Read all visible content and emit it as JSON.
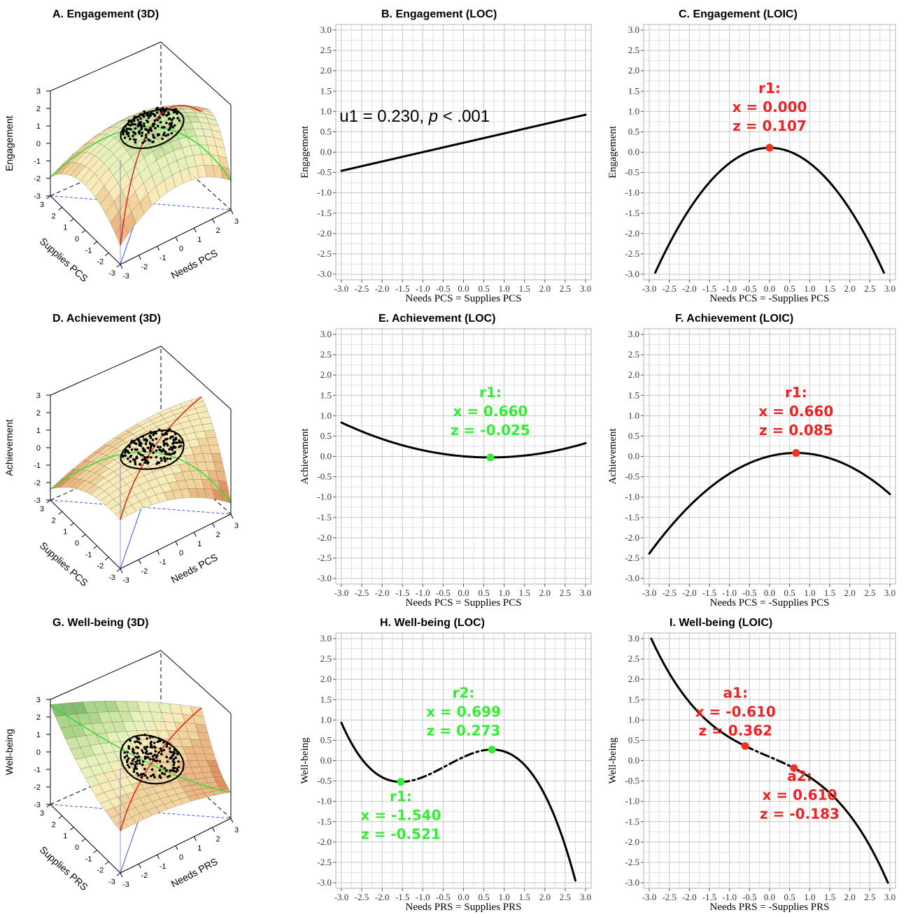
{
  "panels": {
    "A": {
      "title": "A. Engagement (3D)",
      "zlabel": "Engagement",
      "xlabel": "Needs PCS",
      "ylabel": "Supplies PCS"
    },
    "D": {
      "title": "D. Achievement (3D)",
      "zlabel": "Achievement",
      "xlabel": "Needs PCS",
      "ylabel": "Supplies PCS"
    },
    "G": {
      "title": "G. Well-being (3D)",
      "zlabel": "Well-being",
      "xlabel": "Needs PRS",
      "ylabel": "Supplies PRS"
    }
  },
  "colors": {
    "line": "#000000",
    "grid": "#c8c8c8",
    "green_marker": "#33ee33",
    "red_marker": "#ee3322",
    "green_text": "#33ee33",
    "red_text": "#ee2222"
  },
  "chart_data": [
    {
      "id": "B",
      "type": "line",
      "title": "B. Engagement (LOC)",
      "xlabel": "Needs PCS = Supplies PCS",
      "ylabel": "Engagement",
      "xlim": [
        -3.0,
        3.0
      ],
      "ylim": [
        -3.0,
        3.0
      ],
      "xticks": [
        "-3.0",
        "-2.5",
        "-2.0",
        "-1.5",
        "-1.0",
        "-0.5",
        "0.0",
        "0.5",
        "1.0",
        "1.5",
        "2.0",
        "2.5",
        "3.0"
      ],
      "yticks": [
        "-3.0",
        "-2.5",
        "-2.0",
        "-1.5",
        "-1.0",
        "-0.5",
        "0.0",
        "0.5",
        "1.0",
        "1.5",
        "2.0",
        "2.5",
        "3.0"
      ],
      "curve": {
        "kind": "linear",
        "coef": [
          0.23,
          0.23
        ],
        "x_range": [
          -3.0,
          3.0
        ]
      },
      "points": [],
      "annotations": [
        {
          "lines": [
            "u1 = 0.230, p < .001"
          ],
          "x": -1.2,
          "y": 0.75,
          "color": "#000000"
        }
      ]
    },
    {
      "id": "C",
      "type": "line",
      "title": "C. Engagement (LOIC)",
      "xlabel": "Needs PCS = -Supplies PCS",
      "ylabel": "Engagement",
      "xlim": [
        -3.0,
        3.0
      ],
      "ylim": [
        -3.0,
        3.0
      ],
      "xticks": [
        "-3.0",
        "-2.5",
        "-2.0",
        "-1.5",
        "-1.0",
        "-0.5",
        "0.0",
        "0.5",
        "1.0",
        "1.5",
        "2.0",
        "2.5",
        "3.0"
      ],
      "yticks": [
        "-3.0",
        "-2.5",
        "-2.0",
        "-1.5",
        "-1.0",
        "-0.5",
        "0.0",
        "0.5",
        "1.0",
        "1.5",
        "2.0",
        "2.5",
        "3.0"
      ],
      "curve": {
        "kind": "quadratic",
        "vertex": [
          0.0,
          0.107
        ],
        "a": -0.3777,
        "x_range": [
          -2.85,
          2.85
        ]
      },
      "points": [
        {
          "x": 0.0,
          "y": 0.107,
          "color": "#ee3322"
        }
      ],
      "annotations": [
        {
          "lines": [
            "r1:",
            "x = 0.000",
            "z = 0.107"
          ],
          "x": 0.0,
          "y": 1.45,
          "color": "#ee2222"
        }
      ]
    },
    {
      "id": "E",
      "type": "line",
      "title": "E. Achievement (LOC)",
      "xlabel": "Needs PCS = Supplies PCS",
      "ylabel": "Achievement",
      "xlim": [
        -3.0,
        3.0
      ],
      "ylim": [
        -3.0,
        3.0
      ],
      "xticks": [
        "-3.0",
        "-2.5",
        "-2.0",
        "-1.5",
        "-1.0",
        "-0.5",
        "0.0",
        "0.5",
        "1.0",
        "1.5",
        "2.0",
        "2.5",
        "3.0"
      ],
      "yticks": [
        "-3.0",
        "-2.5",
        "-2.0",
        "-1.5",
        "-1.0",
        "-0.5",
        "0.0",
        "0.5",
        "1.0",
        "1.5",
        "2.0",
        "2.5",
        "3.0"
      ],
      "curve": {
        "kind": "quadratic",
        "vertex": [
          0.66,
          -0.025
        ],
        "a": 0.064,
        "x_range": [
          -3.0,
          3.0
        ]
      },
      "points": [
        {
          "x": 0.66,
          "y": -0.025,
          "color": "#33ee33"
        }
      ],
      "annotations": [
        {
          "lines": [
            "r1:",
            "x = 0.660",
            "z = -0.025"
          ],
          "x": 0.66,
          "y": 1.45,
          "color": "#33ee33"
        }
      ]
    },
    {
      "id": "F",
      "type": "line",
      "title": "F. Achievement (LOIC)",
      "xlabel": "Needs PCS = -Supplies PCS",
      "ylabel": "Achievement",
      "xlim": [
        -3.0,
        3.0
      ],
      "ylim": [
        -3.0,
        3.0
      ],
      "xticks": [
        "-3.0",
        "-2.5",
        "-2.0",
        "-1.5",
        "-1.0",
        "-0.5",
        "0.0",
        "0.5",
        "1.0",
        "1.5",
        "2.0",
        "2.5",
        "3.0"
      ],
      "yticks": [
        "-3.0",
        "-2.5",
        "-2.0",
        "-1.5",
        "-1.0",
        "-0.5",
        "0.0",
        "0.5",
        "1.0",
        "1.5",
        "2.0",
        "2.5",
        "3.0"
      ],
      "curve": {
        "kind": "quadratic",
        "vertex": [
          0.66,
          0.085
        ],
        "a": -0.1847,
        "x_range": [
          -3.0,
          3.0
        ]
      },
      "points": [
        {
          "x": 0.66,
          "y": 0.085,
          "color": "#ee3322"
        }
      ],
      "annotations": [
        {
          "lines": [
            "r1:",
            "x = 0.660",
            "z = 0.085"
          ],
          "x": 0.66,
          "y": 1.45,
          "color": "#ee2222"
        }
      ]
    },
    {
      "id": "H",
      "type": "line",
      "title": "H. Well-being (LOC)",
      "xlabel": "Needs PRS = Supplies PRS",
      "ylabel": "Well-being",
      "xlim": [
        -3.0,
        3.0
      ],
      "ylim": [
        -3.0,
        3.0
      ],
      "xticks": [
        "-3.0",
        "-2.5",
        "-2.0",
        "-1.5",
        "-1.0",
        "-0.5",
        "0.0",
        "0.5",
        "1.0",
        "1.5",
        "2.0",
        "2.5",
        "3.0"
      ],
      "yticks": [
        "-3.0",
        "-2.5",
        "-2.0",
        "-1.5",
        "-1.0",
        "-0.5",
        "0.0",
        "0.5",
        "1.0",
        "1.5",
        "2.0",
        "2.5",
        "3.0"
      ],
      "curve": {
        "kind": "cubic",
        "x_range": [
          -3.0,
          2.75
        ],
        "knots": [
          [
            -1.54,
            -0.521
          ],
          [
            0.699,
            0.273
          ]
        ],
        "dashed_between": [
          -1.54,
          0.699
        ]
      },
      "points": [
        {
          "x": -1.54,
          "y": -0.521,
          "color": "#33ee33"
        },
        {
          "x": 0.699,
          "y": 0.273,
          "color": "#33ee33"
        }
      ],
      "annotations": [
        {
          "lines": [
            "r2:",
            "x = 0.699",
            "z = 0.273"
          ],
          "x": 0.0,
          "y": 1.55,
          "color": "#33ee33"
        },
        {
          "lines": [
            "r1:",
            "x = -1.540",
            "z = -0.521"
          ],
          "x": -1.54,
          "y": -1.0,
          "color": "#33ee33"
        }
      ]
    },
    {
      "id": "I",
      "type": "line",
      "title": "I. Well-being (LOIC)",
      "xlabel": "Needs PRS = -Supplies PRS",
      "ylabel": "Well-being",
      "xlim": [
        -3.0,
        3.0
      ],
      "ylim": [
        -3.0,
        3.0
      ],
      "xticks": [
        "-3.0",
        "-2.5",
        "-2.0",
        "-1.5",
        "-1.0",
        "-0.5",
        "0.0",
        "0.5",
        "1.0",
        "1.5",
        "2.0",
        "2.5",
        "3.0"
      ],
      "yticks": [
        "-3.0",
        "-2.5",
        "-2.0",
        "-1.5",
        "-1.0",
        "-0.5",
        "0.0",
        "0.5",
        "1.0",
        "1.5",
        "2.0",
        "2.5",
        "3.0"
      ],
      "curve": {
        "kind": "cubic",
        "x_range": [
          -2.95,
          2.95
        ],
        "knots": [
          [
            -0.61,
            0.362
          ],
          [
            0.61,
            -0.183
          ]
        ],
        "ends": [
          [
            -2.95,
            3.0
          ],
          [
            2.95,
            -3.0
          ]
        ],
        "dashed_between": [
          -0.61,
          0.61
        ]
      },
      "points": [
        {
          "x": -0.61,
          "y": 0.362,
          "color": "#ee3322"
        },
        {
          "x": 0.61,
          "y": -0.183,
          "color": "#ee3322"
        }
      ],
      "annotations": [
        {
          "lines": [
            "a1:",
            "x = -0.610",
            "z = 0.362"
          ],
          "x": -0.85,
          "y": 1.55,
          "color": "#ee2222"
        },
        {
          "lines": [
            "a2:",
            "x = 0.610",
            "z = -0.183"
          ],
          "x": 0.75,
          "y": -0.5,
          "color": "#ee2222"
        }
      ]
    }
  ]
}
